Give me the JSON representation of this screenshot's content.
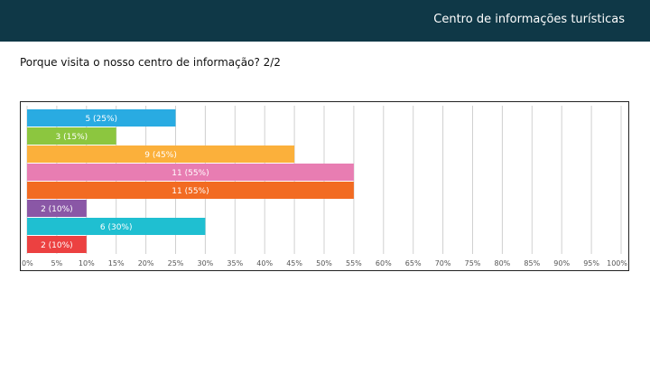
{
  "header": {
    "title": "Centro de informações turísticas"
  },
  "question": {
    "text": "Porque visita o nosso centro de informação? 2/2"
  },
  "chart_data": {
    "type": "bar",
    "orientation": "horizontal",
    "categories": [
      "",
      "",
      "",
      "",
      "",
      "",
      "",
      ""
    ],
    "values": [
      25,
      15,
      45,
      55,
      55,
      10,
      30,
      10
    ],
    "counts": [
      5,
      3,
      9,
      11,
      11,
      2,
      6,
      2
    ],
    "data_labels": [
      "5 (25%)",
      "3 (15%)",
      "9 (45%)",
      "11 (55%)",
      "11 (55%)",
      "2 (10%)",
      "6 (30%)",
      "2 (10%)"
    ],
    "colors": [
      "#29abe2",
      "#8cc63f",
      "#fbb03b",
      "#e87db2",
      "#f26b22",
      "#8a57a6",
      "#1fbfd1",
      "#ec4141"
    ],
    "xlim": [
      0,
      100
    ],
    "ticks": [
      0,
      5,
      10,
      15,
      20,
      25,
      30,
      35,
      40,
      45,
      50,
      55,
      60,
      65,
      70,
      75,
      80,
      85,
      90,
      95,
      100
    ],
    "tick_labels": [
      "0%",
      "5%",
      "10%",
      "15%",
      "20%",
      "25%",
      "30%",
      "35%",
      "40%",
      "45%",
      "50%",
      "55%",
      "60%",
      "65%",
      "70%",
      "75%",
      "80%",
      "85%",
      "90%",
      "95%",
      "100%"
    ],
    "grid": true,
    "title": "",
    "xlabel": "",
    "ylabel": ""
  }
}
